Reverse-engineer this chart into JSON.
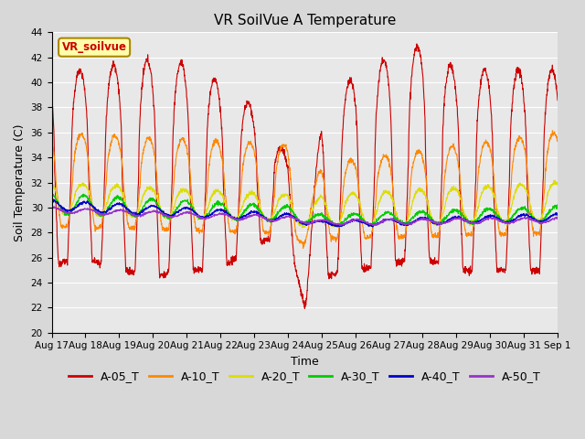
{
  "title": "VR SoilVue A Temperature",
  "ylabel": "Soil Temperature (C)",
  "xlabel": "Time",
  "ylim": [
    20,
    44
  ],
  "yticks": [
    20,
    22,
    24,
    26,
    28,
    30,
    32,
    34,
    36,
    38,
    40,
    42,
    44
  ],
  "fig_bg_color": "#d8d8d8",
  "plot_bg_color": "#e8e8e8",
  "series_colors": {
    "A-05_T": "#cc0000",
    "A-10_T": "#ff8800",
    "A-20_T": "#dddd00",
    "A-30_T": "#00cc00",
    "A-40_T": "#0000cc",
    "A-50_T": "#9933cc"
  },
  "watermark_text": "VR_soilvue",
  "watermark_bg": "#ffffaa",
  "watermark_border": "#aa8800",
  "x_labels": [
    "Aug 17",
    "Aug 18",
    "Aug 19",
    "Aug 20",
    "Aug 21",
    "Aug 22",
    "Aug 23",
    "Aug 24",
    "Aug 25",
    "Aug 26",
    "Aug 27",
    "Aug 28",
    "Aug 29",
    "Aug 30",
    "Aug 31",
    "Sep 1"
  ],
  "title_fontsize": 11,
  "axis_label_fontsize": 9,
  "tick_fontsize": 7.5,
  "legend_fontsize": 9
}
